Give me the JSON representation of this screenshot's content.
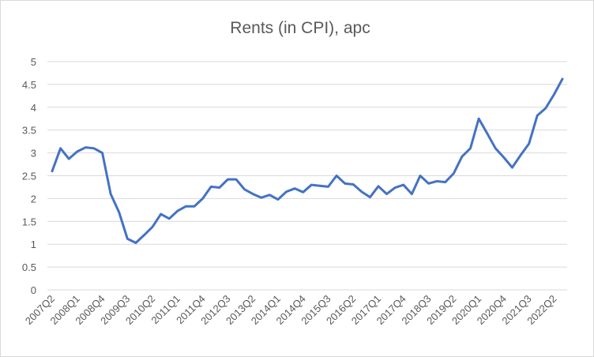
{
  "chart_data": {
    "type": "line",
    "title": "Rents (in CPI), apc",
    "categories": [
      "2007Q2",
      null,
      null,
      "2008Q1",
      null,
      null,
      "2008Q4",
      null,
      null,
      "2009Q3",
      null,
      null,
      "2010Q2",
      null,
      null,
      "2011Q1",
      null,
      null,
      "2011Q4",
      null,
      null,
      "2012Q3",
      null,
      null,
      "2013Q2",
      null,
      null,
      "2014Q1",
      null,
      null,
      "2014Q4",
      null,
      null,
      "2015Q3",
      null,
      null,
      "2016Q2",
      null,
      null,
      "2017Q1",
      null,
      null,
      "2017Q4",
      null,
      null,
      "2018Q3",
      null,
      null,
      "2019Q2",
      null,
      null,
      "2020Q1",
      null,
      null,
      "2020Q4",
      null,
      null,
      "2021Q3",
      null,
      null,
      "2022Q2",
      null
    ],
    "series": [
      {
        "name": "Rents (in CPI), apc",
        "color": "#4472c4",
        "values": [
          2.6,
          3.1,
          2.87,
          3.03,
          3.12,
          3.1,
          3.0,
          2.1,
          1.7,
          1.12,
          1.03,
          1.2,
          1.38,
          1.66,
          1.56,
          1.73,
          1.83,
          1.83,
          2.0,
          2.26,
          2.24,
          2.42,
          2.42,
          2.2,
          2.1,
          2.02,
          2.08,
          1.98,
          2.15,
          2.22,
          2.14,
          2.3,
          2.28,
          2.26,
          2.5,
          2.33,
          2.31,
          2.15,
          2.03,
          2.27,
          2.1,
          2.24,
          2.3,
          2.1,
          2.5,
          2.33,
          2.38,
          2.36,
          2.55,
          2.92,
          3.1,
          3.75,
          3.43,
          3.1,
          2.9,
          2.68,
          2.95,
          3.2,
          3.82,
          3.98,
          4.28,
          4.62
        ]
      }
    ],
    "ylim": [
      0,
      5
    ],
    "yticks": [
      0,
      0.5,
      1,
      1.5,
      2,
      2.5,
      3,
      3.5,
      4,
      4.5,
      5
    ],
    "grid": true
  }
}
